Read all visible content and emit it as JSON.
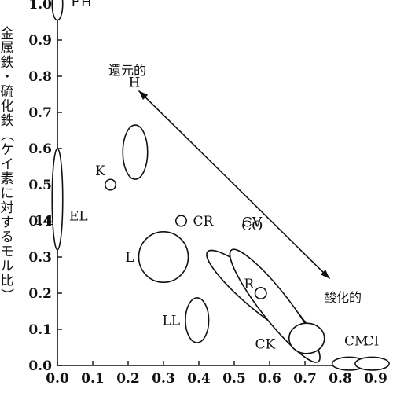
{
  "chart_data": {
    "type": "scatter",
    "ylabel": "金属鉄・硫化鉄（ケイ素に対するモル比）",
    "xlim": [
      0.0,
      0.9
    ],
    "ylim": [
      0.0,
      1.0
    ],
    "x_ticks": [
      "0.0",
      "0.1",
      "0.2",
      "0.3",
      "0.4",
      "0.5",
      "0.6",
      "0.7",
      "0.8",
      "0.9"
    ],
    "y_ticks": [
      "0.0",
      "0.1",
      "0.2",
      "0.3",
      "0.4",
      "0.5",
      "0.6",
      "0.7",
      "0.8",
      "0.9",
      "1.0"
    ],
    "y_axis_break_label": "14",
    "groups": [
      {
        "label": "EH",
        "x": 0.0,
        "y": 1.0,
        "shape": "ellipse",
        "rx": 0.015,
        "ry": 0.045
      },
      {
        "label": "EL",
        "x": 0.0,
        "y": 0.46,
        "shape": "ellipse",
        "rx": 0.015,
        "ry": 0.14
      },
      {
        "label": "H",
        "x": 0.22,
        "y": 0.59,
        "shape": "ellipse",
        "rx": 0.035,
        "ry": 0.075
      },
      {
        "label": "K",
        "x": 0.15,
        "y": 0.5,
        "shape": "circle",
        "rx": 0.015,
        "ry": 0.015
      },
      {
        "label": "CR",
        "x": 0.35,
        "y": 0.4,
        "shape": "circle",
        "rx": 0.015,
        "ry": 0.015
      },
      {
        "label": "L",
        "x": 0.3,
        "y": 0.3,
        "shape": "ellipse",
        "rx": 0.07,
        "ry": 0.07
      },
      {
        "label": "CV",
        "x": 0.57,
        "y": 0.195,
        "shape": "ellipse",
        "rx": 0.19,
        "ry": 0.04,
        "angle_deg": 40
      },
      {
        "label": "CO",
        "x": 0.615,
        "y": 0.165,
        "shape": "ellipse",
        "rx": 0.2,
        "ry": 0.04,
        "angle_deg": 52
      },
      {
        "label": "R",
        "x": 0.575,
        "y": 0.2,
        "shape": "circle",
        "rx": 0.016,
        "ry": 0.016
      },
      {
        "label": "LL",
        "x": 0.395,
        "y": 0.125,
        "shape": "ellipse",
        "rx": 0.033,
        "ry": 0.062
      },
      {
        "label": "CK",
        "x": 0.705,
        "y": 0.075,
        "shape": "ellipse",
        "rx": 0.05,
        "ry": 0.042
      },
      {
        "label": "CM",
        "x": 0.825,
        "y": 0.005,
        "shape": "ellipse",
        "rx": 0.048,
        "ry": 0.018
      },
      {
        "label": "CI",
        "x": 0.89,
        "y": 0.005,
        "shape": "ellipse",
        "rx": 0.048,
        "ry": 0.018
      }
    ],
    "annotations": {
      "reduced": "還元的",
      "oxidized": "酸化的",
      "arrow": {
        "from": [
          0.23,
          0.76
        ],
        "to": [
          0.77,
          0.24
        ]
      }
    }
  }
}
